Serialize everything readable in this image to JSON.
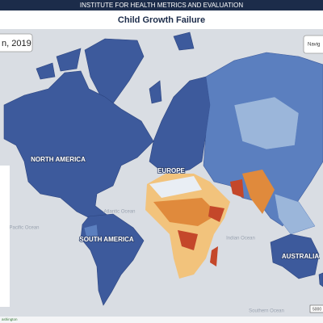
{
  "header": {
    "title": "INSTITUTE FOR HEALTH METRICS AND EVALUATION"
  },
  "title": "Child Growth Failure",
  "controls": {
    "date": "n, 2019",
    "navigate": "Navig"
  },
  "map": {
    "labels": {
      "north_america": "NORTH AMERICA",
      "europe": "EUROPE",
      "south_america": "SOUTH AMERICA",
      "australia": "AUSTRALIA",
      "atlantic_ocean": "Atlantic Ocean",
      "pacific_ocean": "Pacific Ocean",
      "indian_ocean": "Indian Ocean",
      "southern_ocean": "Southern Ocean"
    },
    "scale": "5000",
    "attribution": "ashington"
  }
}
